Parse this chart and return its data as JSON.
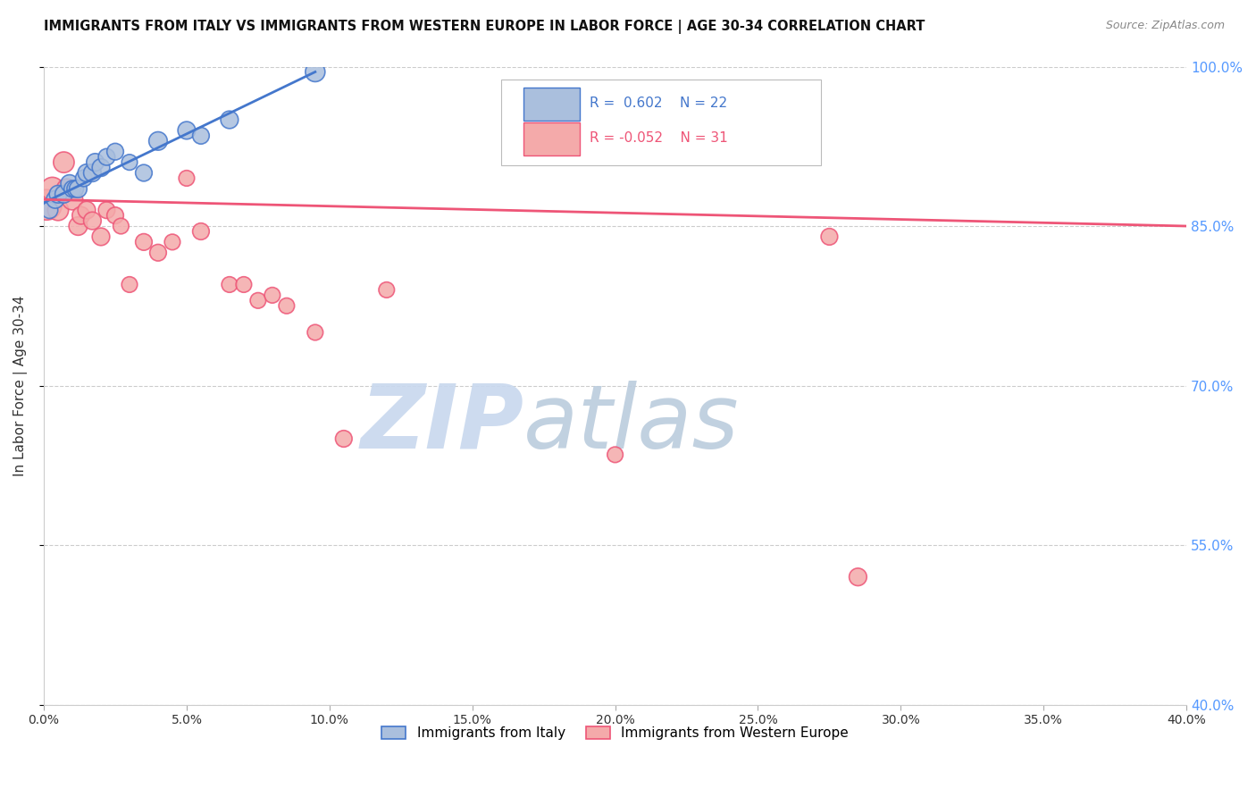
{
  "title": "IMMIGRANTS FROM ITALY VS IMMIGRANTS FROM WESTERN EUROPE IN LABOR FORCE | AGE 30-34 CORRELATION CHART",
  "source": "Source: ZipAtlas.com",
  "ylabel": "In Labor Force | Age 30-34",
  "xlabel": "",
  "xlim": [
    0.0,
    40.0
  ],
  "ylim": [
    40.0,
    100.0
  ],
  "xticks": [
    0.0,
    5.0,
    10.0,
    15.0,
    20.0,
    25.0,
    30.0,
    35.0,
    40.0
  ],
  "yticks": [
    40.0,
    55.0,
    70.0,
    85.0,
    100.0
  ],
  "blue_R": 0.602,
  "blue_N": 22,
  "pink_R": -0.052,
  "pink_N": 31,
  "blue_color": "#AABFDD",
  "pink_color": "#F4AAAA",
  "blue_line_color": "#4477CC",
  "pink_line_color": "#EE5577",
  "legend_label_blue": "Immigrants from Italy",
  "legend_label_pink": "Immigrants from Western Europe",
  "blue_points_x": [
    0.2,
    0.4,
    0.5,
    0.7,
    0.9,
    1.0,
    1.1,
    1.2,
    1.4,
    1.5,
    1.7,
    1.8,
    2.0,
    2.2,
    2.5,
    3.0,
    3.5,
    4.0,
    5.0,
    5.5,
    6.5,
    9.5
  ],
  "blue_points_y": [
    86.5,
    87.5,
    88.0,
    88.0,
    89.0,
    88.5,
    88.5,
    88.5,
    89.5,
    90.0,
    90.0,
    91.0,
    90.5,
    91.5,
    92.0,
    91.0,
    90.0,
    93.0,
    94.0,
    93.5,
    95.0,
    99.5
  ],
  "blue_sizes": [
    180,
    200,
    200,
    200,
    200,
    180,
    180,
    200,
    180,
    200,
    200,
    200,
    200,
    180,
    180,
    160,
    180,
    220,
    200,
    180,
    200,
    250
  ],
  "pink_points_x": [
    0.1,
    0.3,
    0.5,
    0.7,
    0.8,
    1.0,
    1.2,
    1.3,
    1.5,
    1.7,
    2.0,
    2.2,
    2.5,
    2.7,
    3.0,
    3.5,
    4.0,
    4.5,
    5.0,
    5.5,
    6.5,
    7.0,
    7.5,
    8.0,
    8.5,
    9.5,
    10.5,
    12.0,
    20.0,
    27.5,
    28.5
  ],
  "pink_points_y": [
    87.0,
    88.5,
    86.5,
    91.0,
    88.5,
    87.5,
    85.0,
    86.0,
    86.5,
    85.5,
    84.0,
    86.5,
    86.0,
    85.0,
    79.5,
    83.5,
    82.5,
    83.5,
    89.5,
    84.5,
    79.5,
    79.5,
    78.0,
    78.5,
    77.5,
    75.0,
    65.0,
    79.0,
    63.5,
    84.0,
    52.0
  ],
  "pink_sizes": [
    600,
    350,
    280,
    280,
    260,
    280,
    220,
    200,
    200,
    200,
    200,
    180,
    180,
    160,
    160,
    180,
    180,
    160,
    160,
    180,
    160,
    160,
    160,
    160,
    160,
    160,
    180,
    160,
    160,
    180,
    200
  ],
  "blue_line_x0": 0.0,
  "blue_line_y0": 87.2,
  "blue_line_x1": 9.5,
  "blue_line_y1": 99.5,
  "pink_line_x0": 0.0,
  "pink_line_y0": 87.5,
  "pink_line_x1": 40.0,
  "pink_line_y1": 85.0,
  "watermark_zip": "ZIP",
  "watermark_atlas": "atlas",
  "right_axis_color": "#5599FF",
  "grid_color": "#CCCCCC"
}
